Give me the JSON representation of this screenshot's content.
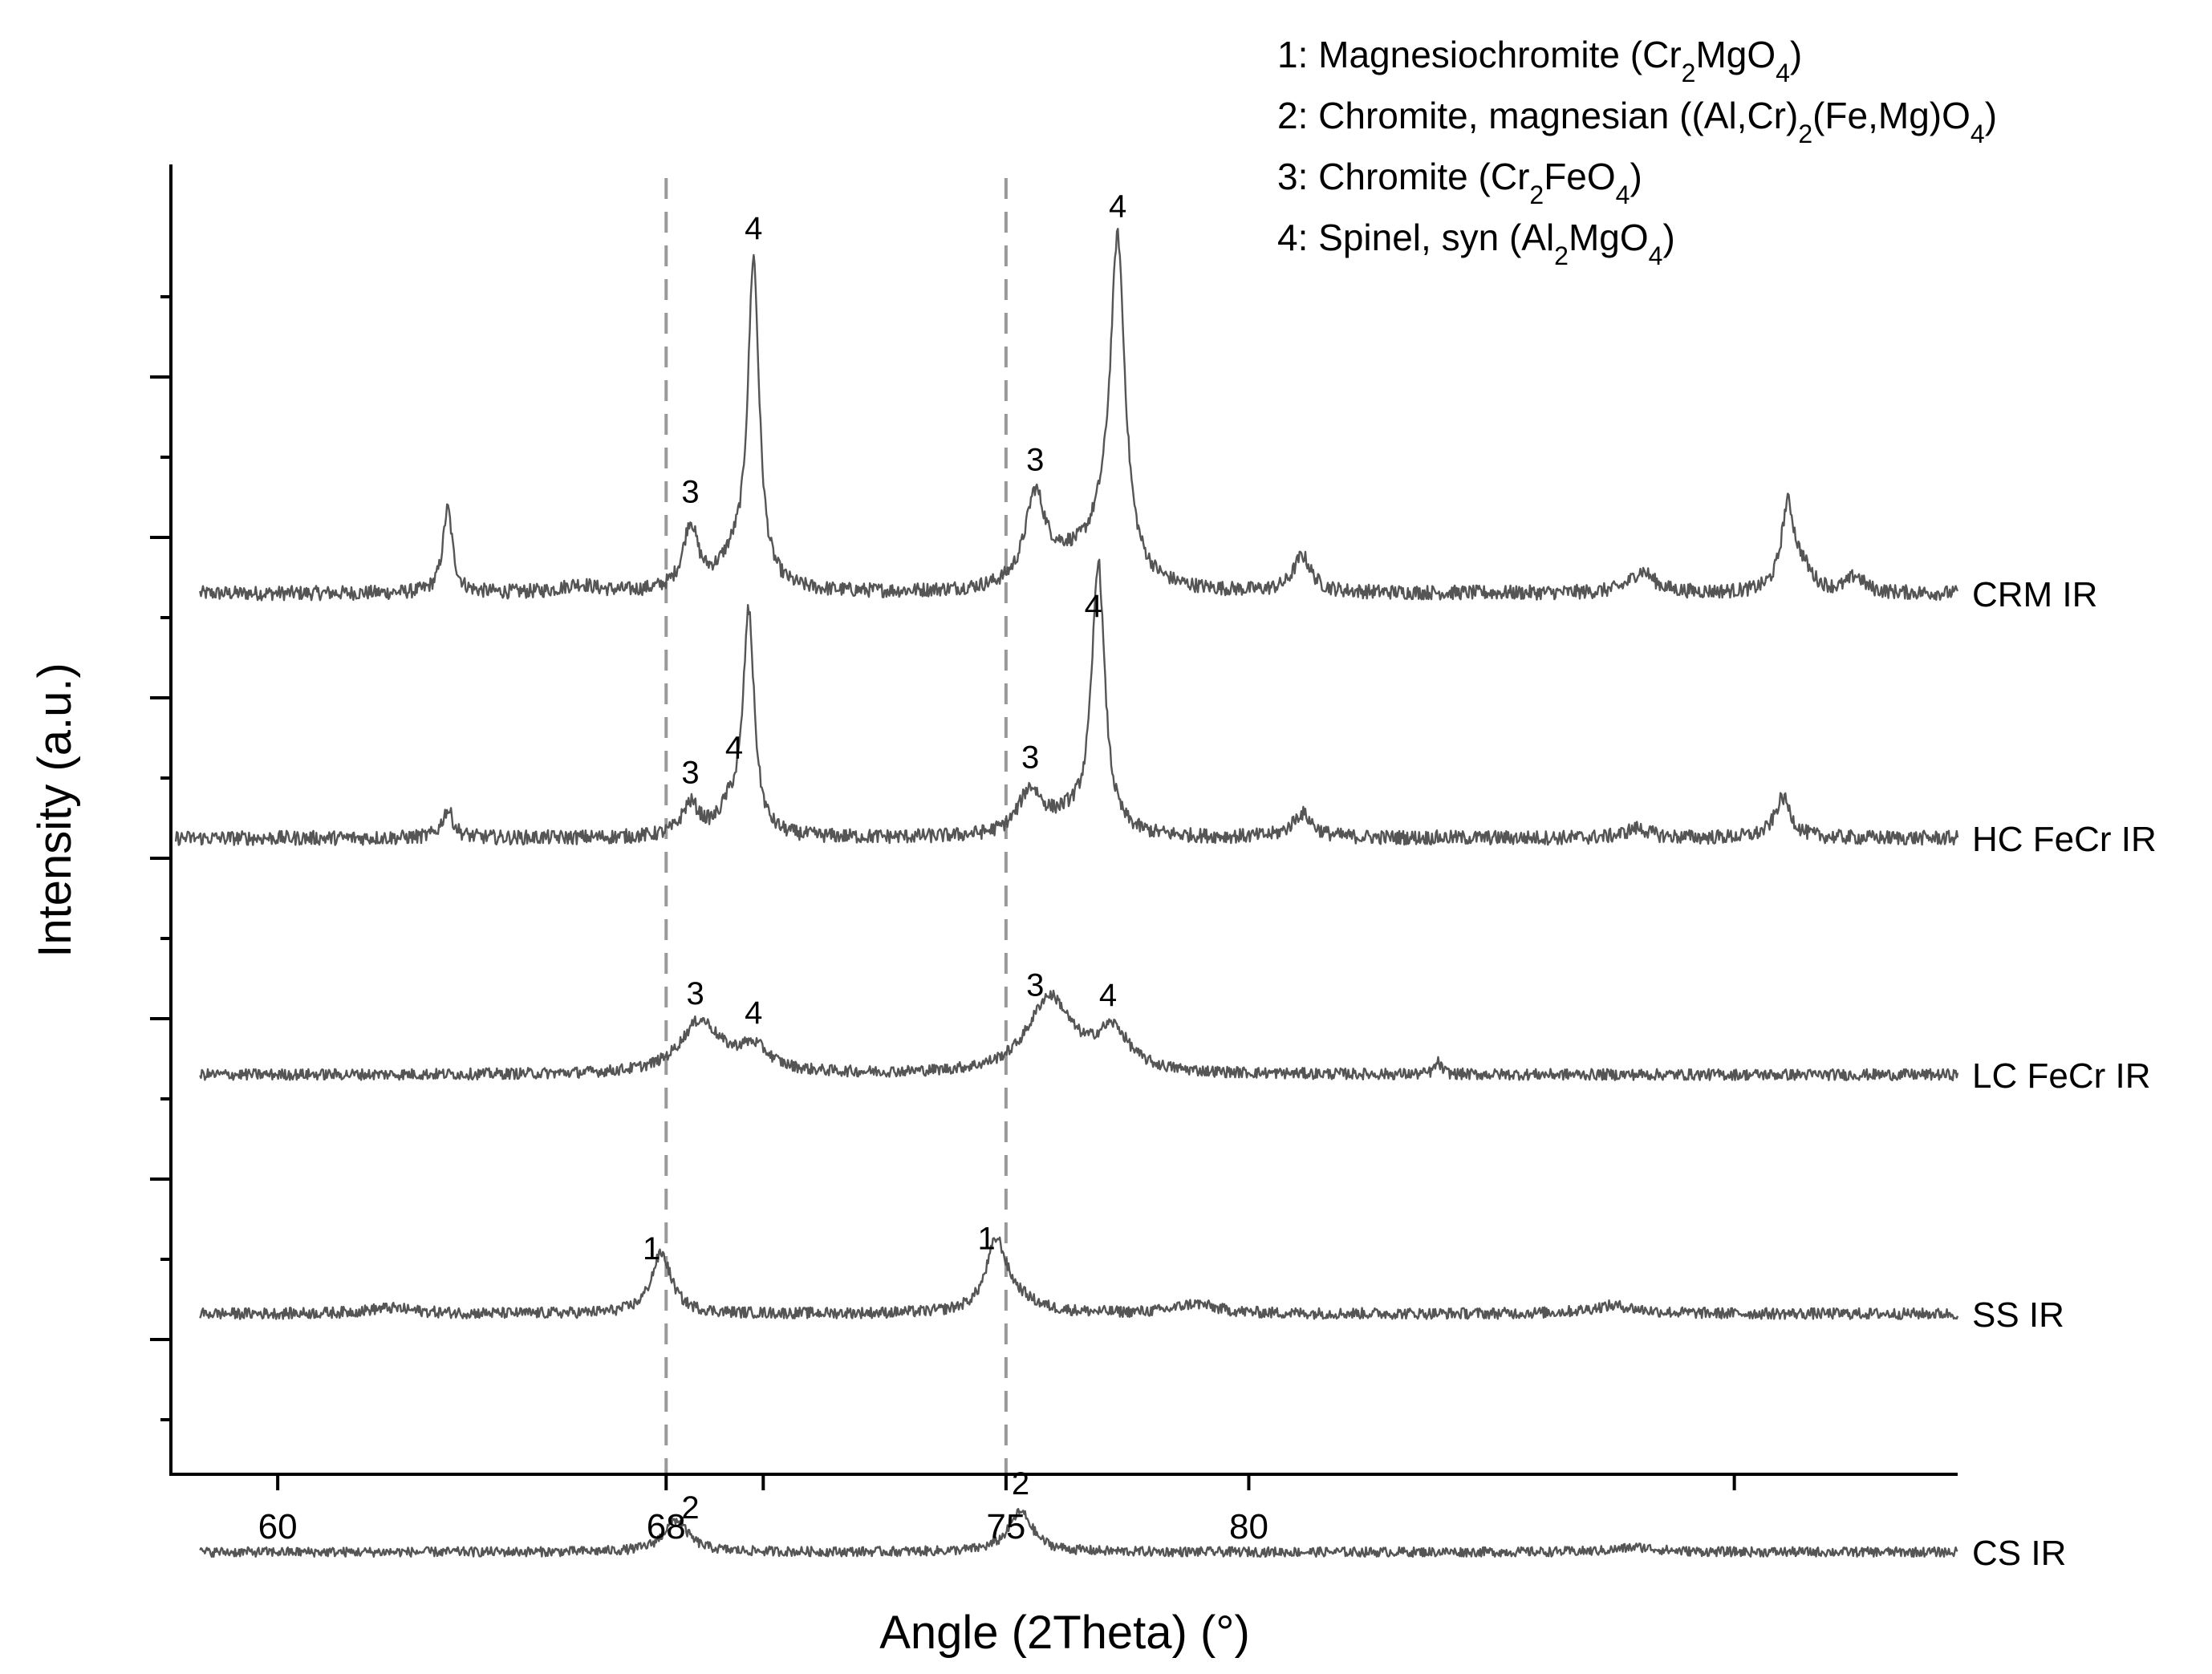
{
  "chart_data": {
    "type": "line",
    "title": "",
    "xlabel": "Angle (2Theta) (°)",
    "ylabel": "Intensity (a.u.)",
    "xlim": [
      57.8,
      94.6
    ],
    "x_ticks": [
      60,
      68,
      75,
      80
    ],
    "x_minor_ticks": [
      70,
      90
    ],
    "y_ticks": "unlabeled",
    "reference_lines": [
      68,
      75
    ],
    "legend": {
      "placement": "top-right",
      "entries": [
        {
          "number": "1",
          "name": "Magnesiochromite",
          "parts": [
            {
              "t": "Cr"
            },
            {
              "t": "2",
              "sub": true
            },
            {
              "t": "MgO"
            },
            {
              "t": "4",
              "sub": true
            }
          ]
        },
        {
          "number": "2",
          "name": "Chromite, magnesian",
          "parts": [
            {
              "t": "(Al,Cr)"
            },
            {
              "t": "2",
              "sub": true
            },
            {
              "t": "(Fe,Mg)O"
            },
            {
              "t": "4",
              "sub": true
            }
          ]
        },
        {
          "number": "3",
          "name": "Chromite",
          "parts": [
            {
              "t": "Cr"
            },
            {
              "t": "2",
              "sub": true
            },
            {
              "t": "FeO"
            },
            {
              "t": "4",
              "sub": true
            }
          ]
        },
        {
          "number": "4",
          "name": "Spinel, syn",
          "parts": [
            {
              "t": "Al"
            },
            {
              "t": "2",
              "sub": true
            },
            {
              "t": "MgO"
            },
            {
              "t": "4",
              "sub": true
            }
          ]
        }
      ]
    },
    "series": [
      {
        "name": "CRM IR",
        "baseline": 10.3,
        "noise": 0.09,
        "peaks": [
          {
            "x": 63.5,
            "h": 1.05,
            "w": 0.12
          },
          {
            "x": 66.2,
            "h": 0.1,
            "w": 0.4
          },
          {
            "x": 68.5,
            "h": 0.8,
            "w": 0.18
          },
          {
            "x": 69.4,
            "h": 0.35,
            "w": 0.4
          },
          {
            "x": 69.8,
            "h": 4.0,
            "w": 0.14
          },
          {
            "x": 75.6,
            "h": 1.1,
            "w": 0.25
          },
          {
            "x": 76.2,
            "h": 0.25,
            "w": 0.5
          },
          {
            "x": 77.0,
            "h": 0.55,
            "w": 0.5
          },
          {
            "x": 77.3,
            "h": 4.0,
            "w": 0.18
          },
          {
            "x": 81.1,
            "h": 0.45,
            "w": 0.22
          },
          {
            "x": 88.1,
            "h": 0.27,
            "w": 0.3
          },
          {
            "x": 91.1,
            "h": 1.05,
            "w": 0.16
          },
          {
            "x": 91.4,
            "h": 0.25,
            "w": 0.25
          },
          {
            "x": 92.5,
            "h": 0.2,
            "w": 0.2
          }
        ],
        "label_peaks": [
          {
            "x": 68.5,
            "text": "3"
          },
          {
            "x": 69.8,
            "text": "4"
          },
          {
            "x": 75.6,
            "text": "3"
          },
          {
            "x": 77.3,
            "text": "4"
          }
        ]
      },
      {
        "name": "HC FeCr IR",
        "baseline": 7.25,
        "noise": 0.09,
        "peaks": [
          {
            "x": 63.5,
            "h": 0.35,
            "w": 0.14
          },
          {
            "x": 68.5,
            "h": 0.4,
            "w": 0.22
          },
          {
            "x": 69.3,
            "h": 0.3,
            "w": 0.25
          },
          {
            "x": 69.7,
            "h": 2.75,
            "w": 0.14
          },
          {
            "x": 75.5,
            "h": 0.55,
            "w": 0.3
          },
          {
            "x": 76.3,
            "h": 0.2,
            "w": 0.5
          },
          {
            "x": 76.9,
            "h": 3.35,
            "w": 0.16
          },
          {
            "x": 81.1,
            "h": 0.3,
            "w": 0.25
          },
          {
            "x": 88.0,
            "h": 0.12,
            "w": 0.3
          },
          {
            "x": 91.0,
            "h": 0.5,
            "w": 0.2
          }
        ],
        "label_peaks": [
          {
            "x": 68.5,
            "text": "3"
          },
          {
            "x": 69.4,
            "text": "4"
          },
          {
            "x": 75.5,
            "text": "3"
          },
          {
            "x": 76.8,
            "text": "4"
          }
        ]
      },
      {
        "name": "LC FeCr IR",
        "baseline": 4.3,
        "noise": 0.07,
        "peaks": [
          {
            "x": 68.7,
            "h": 0.65,
            "w": 0.5
          },
          {
            "x": 69.8,
            "h": 0.3,
            "w": 0.4
          },
          {
            "x": 75.9,
            "h": 0.95,
            "w": 0.55
          },
          {
            "x": 77.2,
            "h": 0.5,
            "w": 0.4
          },
          {
            "x": 83.9,
            "h": 0.15,
            "w": 0.08
          }
        ],
        "label_peaks": [
          {
            "x": 68.6,
            "text": "3"
          },
          {
            "x": 69.8,
            "text": "4"
          },
          {
            "x": 75.6,
            "text": "3"
          },
          {
            "x": 77.1,
            "text": "4"
          }
        ]
      },
      {
        "name": "SS IR",
        "baseline": 1.32,
        "noise": 0.07,
        "peaks": [
          {
            "x": 62.3,
            "h": 0.07,
            "w": 0.6
          },
          {
            "x": 67.9,
            "h": 0.75,
            "w": 0.25
          },
          {
            "x": 74.8,
            "h": 0.85,
            "w": 0.25
          },
          {
            "x": 75.2,
            "h": 0.15,
            "w": 0.5
          },
          {
            "x": 78.9,
            "h": 0.12,
            "w": 0.5
          },
          {
            "x": 87.5,
            "h": 0.1,
            "w": 0.6
          }
        ],
        "label_peaks": [
          {
            "x": 67.7,
            "text": "1"
          },
          {
            "x": 74.6,
            "text": "1"
          }
        ]
      },
      {
        "name": "CS IR",
        "baseline": -1.65,
        "noise": 0.06,
        "peaks": [
          {
            "x": 68.2,
            "h": 0.4,
            "w": 0.3
          },
          {
            "x": 75.3,
            "h": 0.5,
            "w": 0.3
          },
          {
            "x": 88.0,
            "h": 0.06,
            "w": 0.5
          }
        ],
        "label_peaks": [
          {
            "x": 68.5,
            "text": "2"
          },
          {
            "x": 75.3,
            "text": "2"
          }
        ]
      }
    ]
  }
}
